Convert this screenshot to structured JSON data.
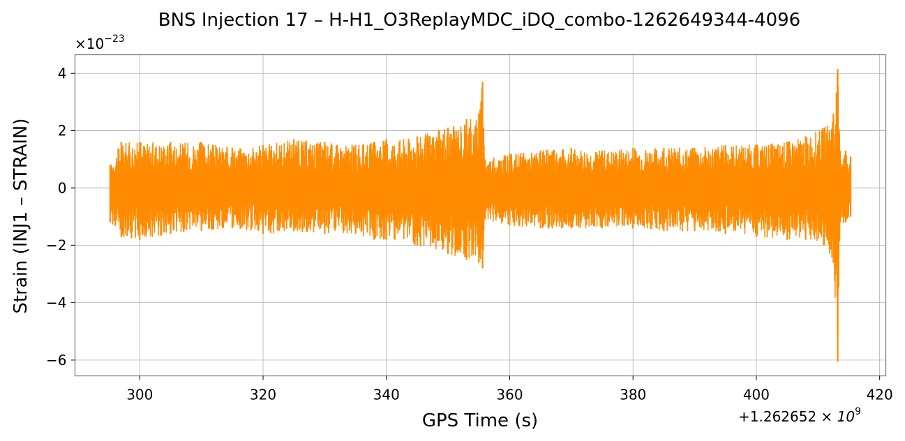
{
  "chart_data": {
    "type": "line",
    "title": "BNS Injection 17 – H-H1_O3ReplayMDC_iDQ_combo-1262649344-4096",
    "xlabel": "GPS Time (s)",
    "ylabel": "Strain (INJ1 – STRAIN)",
    "x_offset_label": "+1.262652",
    "x_offset_exponent": "9",
    "y_scale_label": "×10",
    "y_scale_exponent": "−23",
    "xlim": [
      289.5,
      421.0
    ],
    "ylim": [
      -6.55,
      4.65
    ],
    "x_ticks": [
      300,
      320,
      340,
      360,
      380,
      400,
      420
    ],
    "x_tick_labels": [
      "300",
      "320",
      "340",
      "360",
      "380",
      "400",
      "420"
    ],
    "y_ticks": [
      -6,
      -4,
      -2,
      0,
      2,
      4
    ],
    "y_tick_labels": [
      "−6",
      "−4",
      "−2",
      "0",
      "2",
      "4"
    ],
    "grid": true,
    "series_color": "#ff8c00",
    "series": [
      {
        "x_range": [
          295.2,
          415.3
        ],
        "envelope": {
          "x": [
            295.2,
            297,
            300,
            305,
            310,
            315,
            320,
            325,
            330,
            335,
            338,
            340,
            345,
            350,
            353,
            355,
            355.6,
            356,
            360,
            365,
            370,
            375,
            380,
            385,
            390,
            395,
            400,
            405,
            408,
            411,
            412.5,
            413.2,
            413.6,
            414.5,
            415.3
          ],
          "upper": [
            0.8,
            1.6,
            1.6,
            1.6,
            1.6,
            1.4,
            1.5,
            1.7,
            1.6,
            1.5,
            1.6,
            1.7,
            1.8,
            2.1,
            2.4,
            2.6,
            3.7,
            1.0,
            1.2,
            1.3,
            1.4,
            1.3,
            1.4,
            1.4,
            1.4,
            1.5,
            1.5,
            1.6,
            1.8,
            2.1,
            2.6,
            4.15,
            1.3,
            1.3,
            1.1
          ],
          "lower": [
            -1.2,
            -1.7,
            -1.8,
            -1.6,
            -1.5,
            -1.4,
            -1.6,
            -1.5,
            -1.6,
            -1.6,
            -1.8,
            -1.8,
            -2.0,
            -2.3,
            -2.5,
            -2.6,
            -2.8,
            -1.1,
            -1.3,
            -1.4,
            -1.4,
            -1.4,
            -1.4,
            -1.5,
            -1.5,
            -1.6,
            -1.7,
            -1.8,
            -1.8,
            -2.0,
            -2.6,
            -6.05,
            -1.2,
            -1.2,
            -1.0
          ]
        }
      }
    ]
  }
}
